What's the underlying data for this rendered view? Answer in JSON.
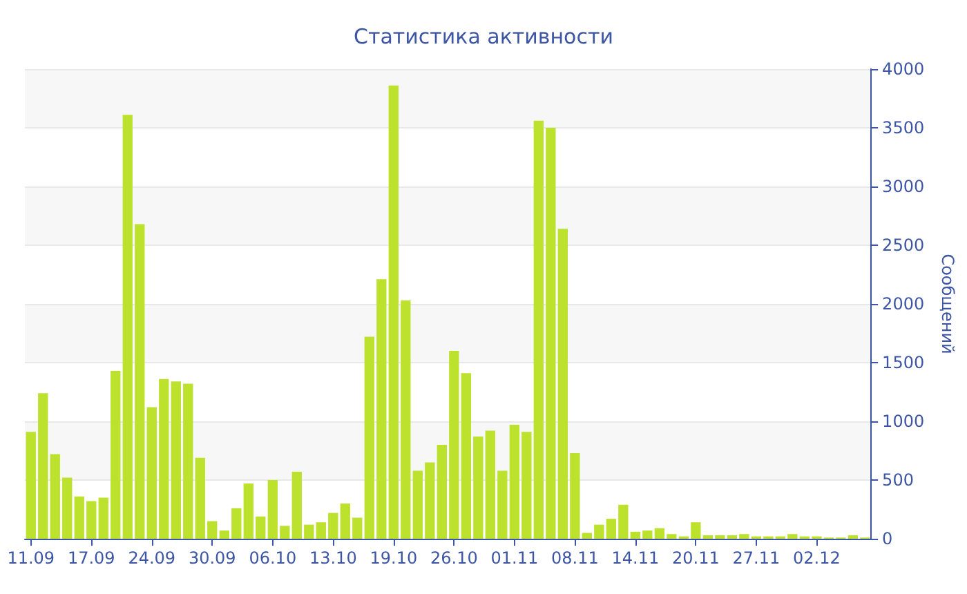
{
  "chart_data": {
    "type": "bar",
    "title": "Статистика активности",
    "ylabel": "Сообщений",
    "categories": [
      "11.09",
      null,
      null,
      null,
      null,
      "17.09",
      null,
      null,
      null,
      null,
      "24.09",
      null,
      null,
      null,
      null,
      "30.09",
      null,
      null,
      null,
      null,
      "06.10",
      null,
      null,
      null,
      null,
      "13.10",
      null,
      null,
      null,
      null,
      "19.10",
      null,
      null,
      null,
      null,
      "26.10",
      null,
      null,
      null,
      null,
      "01.11",
      null,
      null,
      null,
      null,
      "08.11",
      null,
      null,
      null,
      null,
      "14.11",
      null,
      null,
      null,
      null,
      "20.11",
      null,
      null,
      null,
      null,
      "27.11",
      null,
      null,
      null,
      null,
      "02.12",
      null,
      null,
      null,
      null
    ],
    "values": [
      910,
      1240,
      720,
      520,
      360,
      320,
      350,
      1430,
      3610,
      2680,
      1120,
      1360,
      1340,
      1320,
      690,
      150,
      70,
      260,
      470,
      190,
      500,
      110,
      570,
      120,
      140,
      220,
      300,
      180,
      1720,
      2210,
      3860,
      2030,
      580,
      650,
      800,
      1600,
      1410,
      870,
      920,
      580,
      970,
      910,
      3560,
      3500,
      2640,
      730,
      50,
      120,
      170,
      290,
      60,
      70,
      90,
      40,
      20,
      140,
      30,
      30,
      30,
      40,
      20,
      20,
      20,
      40,
      20,
      20,
      10,
      10,
      30,
      10
    ],
    "color": "#bde22e",
    "ylim": [
      0,
      4000
    ],
    "yticks": [
      0,
      500,
      1000,
      1500,
      2000,
      2500,
      3000,
      3500,
      4000
    ],
    "grid": "y"
  }
}
